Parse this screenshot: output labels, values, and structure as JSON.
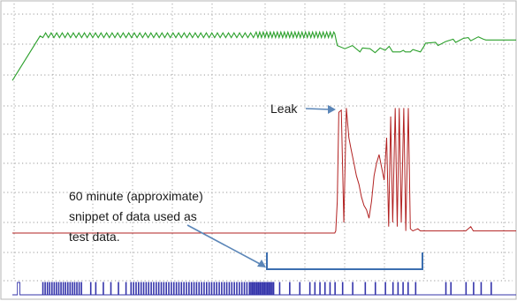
{
  "chart_data": {
    "type": "line",
    "title": "",
    "xlabel": "",
    "ylabel": "",
    "grid": true,
    "legend": "none",
    "xlim": [
      0,
      100
    ],
    "series": [
      {
        "color": "#2ca02c",
        "style": "sawtooth",
        "values_desc": "pressure-like trace",
        "points": [
          [
            0,
            32
          ],
          [
            5,
            87
          ],
          [
            7,
            91
          ],
          [
            50,
            92
          ],
          [
            62,
            92
          ],
          [
            64,
            78
          ],
          [
            67,
            71
          ],
          [
            69,
            77
          ],
          [
            72,
            68
          ],
          [
            75,
            73
          ],
          [
            78,
            67
          ],
          [
            81,
            80
          ],
          [
            86,
            83
          ],
          [
            90,
            85
          ],
          [
            94,
            86
          ],
          [
            95,
            81
          ],
          [
            100,
            81
          ]
        ]
      },
      {
        "color": "#b22222",
        "style": "spikes",
        "points": [
          [
            0,
            15
          ],
          [
            64,
            15
          ],
          [
            65,
            73
          ],
          [
            66,
            74
          ],
          [
            67,
            52
          ],
          [
            69,
            30
          ],
          [
            70,
            26
          ],
          [
            71,
            30
          ],
          [
            72,
            46
          ],
          [
            73,
            48
          ],
          [
            74,
            38
          ],
          [
            75,
            55
          ],
          [
            76,
            20
          ],
          [
            77,
            74
          ],
          [
            78,
            74
          ],
          [
            79,
            20
          ],
          [
            80,
            16
          ],
          [
            84,
            16
          ],
          [
            100,
            16
          ]
        ]
      },
      {
        "color": "#3333aa",
        "style": "pulses",
        "points": []
      }
    ],
    "annotations": [
      {
        "id": "leak",
        "text": "Leak"
      },
      {
        "id": "snippet",
        "lines": [
          "60 minute (approximate)",
          "snippet of data used as",
          "test data."
        ]
      }
    ]
  }
}
